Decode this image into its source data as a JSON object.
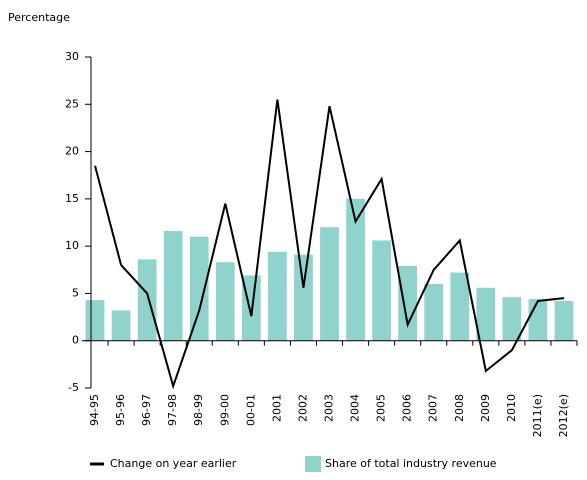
{
  "chart_data": {
    "type": "bar-line",
    "y_label": "Percentage",
    "categories": [
      "94-95",
      "95-96",
      "96-97",
      "97-98",
      "98-99",
      "99-00",
      "00-01",
      "2001",
      "2002",
      "2003",
      "2004",
      "2005",
      "2006",
      "2007",
      "2008",
      "2009",
      "2010",
      "2011(e)",
      "2012(e)"
    ],
    "series": [
      {
        "name": "Share of total industry revenue",
        "type": "bar",
        "color": "#8fd3cc",
        "values": [
          4.3,
          3.2,
          8.6,
          11.6,
          11.0,
          8.3,
          6.9,
          9.4,
          9.1,
          12.0,
          15.0,
          10.6,
          7.9,
          6.0,
          7.2,
          5.6,
          4.6,
          4.4,
          4.2
        ]
      },
      {
        "name": "Change on year earlier",
        "type": "line",
        "color": "#000000",
        "values": [
          18.5,
          8.0,
          5.0,
          -4.8,
          3.2,
          14.5,
          2.6,
          25.5,
          5.6,
          24.8,
          12.6,
          17.1,
          1.7,
          7.5,
          10.6,
          -3.2,
          -1.0,
          4.2,
          4.5
        ]
      }
    ],
    "ylim": [
      -5,
      30
    ],
    "yticks": [
      -5,
      0,
      5,
      10,
      15,
      20,
      25,
      30
    ]
  }
}
